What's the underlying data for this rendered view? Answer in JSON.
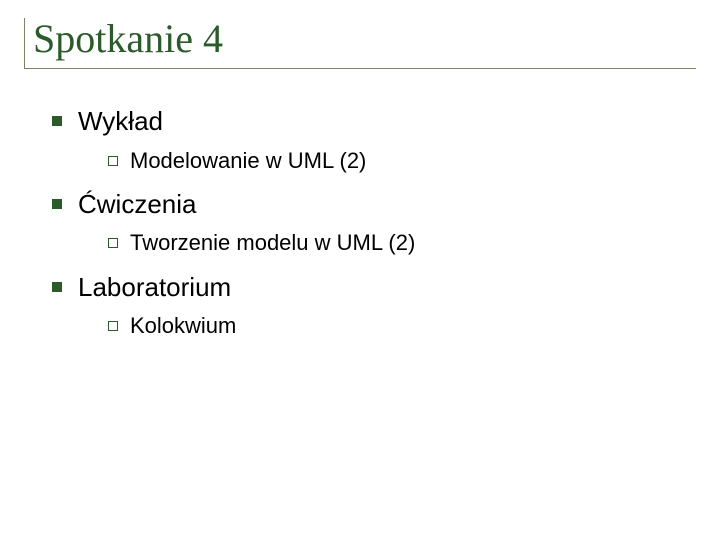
{
  "colors": {
    "title_color": "#2b5a2b",
    "bullet_l1_fill": "#2b5a2b",
    "bullet_l2_border": "#2b5a2b",
    "rule_color": "#808066",
    "background": "#ffffff",
    "text_color": "#000000"
  },
  "title": "Spotkanie 4",
  "title_fontsize_pt": 30,
  "l1_fontsize_pt": 20,
  "l2_fontsize_pt": 16,
  "sections": [
    {
      "label": "Wykład",
      "items": [
        {
          "label": "Modelowanie w UML (2)"
        }
      ]
    },
    {
      "label": "Ćwiczenia",
      "items": [
        {
          "label": "Tworzenie modelu w UML (2)"
        }
      ]
    },
    {
      "label": "Laboratorium",
      "items": [
        {
          "label": "Kolokwium"
        }
      ]
    }
  ]
}
